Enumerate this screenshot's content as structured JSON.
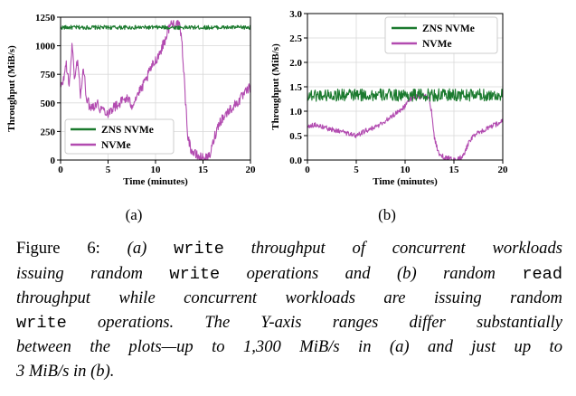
{
  "colors": {
    "zns": "#1b7a2e",
    "nvme": "#b24bb0",
    "axis": "#000000",
    "grid": "#d9d9d9"
  },
  "chart_data": [
    {
      "id": "a",
      "type": "line",
      "sub_label": "(a)",
      "xlabel": "Time (minutes)",
      "ylabel": "Throughput (MiB/s)",
      "xlim": [
        0,
        20
      ],
      "ylim": [
        0,
        1250
      ],
      "xticks": [
        "0",
        "5",
        "10",
        "15",
        "20"
      ],
      "yticks": [
        "0",
        "250",
        "500",
        "750",
        "1000",
        "1250"
      ],
      "grid": true,
      "legend": "bottom-left",
      "series": [
        {
          "name": "ZNS NVMe",
          "points": [
            [
              0,
              1160
            ],
            [
              20,
              1160
            ]
          ],
          "noise": 18
        },
        {
          "name": "NVMe",
          "points": [
            [
              0,
              620
            ],
            [
              0.3,
              700
            ],
            [
              0.6,
              850
            ],
            [
              0.9,
              640
            ],
            [
              1.2,
              1000
            ],
            [
              1.5,
              700
            ],
            [
              1.8,
              900
            ],
            [
              2.1,
              560
            ],
            [
              2.4,
              800
            ],
            [
              2.7,
              570
            ],
            [
              3,
              480
            ],
            [
              3.4,
              470
            ],
            [
              3.8,
              500
            ],
            [
              4.2,
              450
            ],
            [
              4.6,
              440
            ],
            [
              5,
              410
            ],
            [
              5.5,
              460
            ],
            [
              6,
              480
            ],
            [
              6.5,
              520
            ],
            [
              7,
              540
            ],
            [
              7.5,
              480
            ],
            [
              8,
              560
            ],
            [
              8.5,
              620
            ],
            [
              9,
              700
            ],
            [
              9.5,
              800
            ],
            [
              10,
              870
            ],
            [
              10.5,
              950
            ],
            [
              11,
              1050
            ],
            [
              11.5,
              1180
            ],
            [
              12,
              1200
            ],
            [
              12.3,
              1190
            ],
            [
              12.6,
              1150
            ],
            [
              12.8,
              1000
            ],
            [
              13,
              750
            ],
            [
              13.2,
              450
            ],
            [
              13.4,
              220
            ],
            [
              13.7,
              100
            ],
            [
              14,
              60
            ],
            [
              14.5,
              30
            ],
            [
              15,
              15
            ],
            [
              15.5,
              10
            ],
            [
              15.8,
              60
            ],
            [
              16.2,
              200
            ],
            [
              16.7,
              330
            ],
            [
              17.2,
              380
            ],
            [
              17.7,
              430
            ],
            [
              18.2,
              470
            ],
            [
              18.7,
              510
            ],
            [
              19.2,
              560
            ],
            [
              19.6,
              600
            ],
            [
              20,
              640
            ]
          ],
          "noise": 45
        }
      ]
    },
    {
      "id": "b",
      "type": "line",
      "sub_label": "(b)",
      "xlabel": "Time (minutes)",
      "ylabel": "Throughput (MiB/s)",
      "xlim": [
        0,
        20
      ],
      "ylim": [
        0,
        3.0
      ],
      "xticks": [
        "0",
        "5",
        "10",
        "15",
        "20"
      ],
      "yticks": [
        "0.0",
        "0.5",
        "1.0",
        "1.5",
        "2.0",
        "2.5",
        "3.0"
      ],
      "grid": true,
      "legend": "top-right",
      "series": [
        {
          "name": "ZNS NVMe",
          "points": [
            [
              0,
              1.33
            ],
            [
              20,
              1.33
            ]
          ],
          "noise": 0.13
        },
        {
          "name": "NVMe",
          "points": [
            [
              0,
              0.7
            ],
            [
              1,
              0.72
            ],
            [
              2,
              0.65
            ],
            [
              3,
              0.6
            ],
            [
              4,
              0.55
            ],
            [
              5,
              0.5
            ],
            [
              6,
              0.6
            ],
            [
              7,
              0.68
            ],
            [
              8,
              0.8
            ],
            [
              9,
              0.95
            ],
            [
              10,
              1.1
            ],
            [
              10.5,
              1.25
            ],
            [
              11,
              1.3
            ],
            [
              12,
              1.32
            ],
            [
              12.4,
              1.3
            ],
            [
              12.7,
              1.0
            ],
            [
              13,
              0.45
            ],
            [
              13.4,
              0.15
            ],
            [
              14,
              0.05
            ],
            [
              15,
              0.01
            ],
            [
              15.5,
              0.02
            ],
            [
              16,
              0.1
            ],
            [
              16.5,
              0.35
            ],
            [
              17,
              0.5
            ],
            [
              18,
              0.6
            ],
            [
              19,
              0.7
            ],
            [
              20,
              0.8
            ]
          ],
          "noise": 0.05
        }
      ]
    }
  ],
  "caption": {
    "lines": [
      [
        {
          "t": "Figure 6: "
        },
        {
          "t": "(a) ",
          "i": true
        },
        {
          "t": "write",
          "m": true
        },
        {
          "t": " throughput of concurrent workloads",
          "i": true
        }
      ],
      [
        {
          "t": "issuing random ",
          "i": true
        },
        {
          "t": "write",
          "m": true
        },
        {
          "t": " operations and (b) random ",
          "i": true
        },
        {
          "t": "read",
          "m": true
        }
      ],
      [
        {
          "t": "throughput while concurrent workloads are issuing random",
          "i": true
        }
      ],
      [
        {
          "t": "write",
          "m": true
        },
        {
          "t": " operations. The Y-axis ranges differ substantially",
          "i": true
        }
      ],
      [
        {
          "t": "between the plots—up to 1,300 MiB/s in (a) and just up to",
          "i": true
        }
      ],
      [
        {
          "t": "3 MiB/s in (b).",
          "i": true
        }
      ]
    ]
  }
}
